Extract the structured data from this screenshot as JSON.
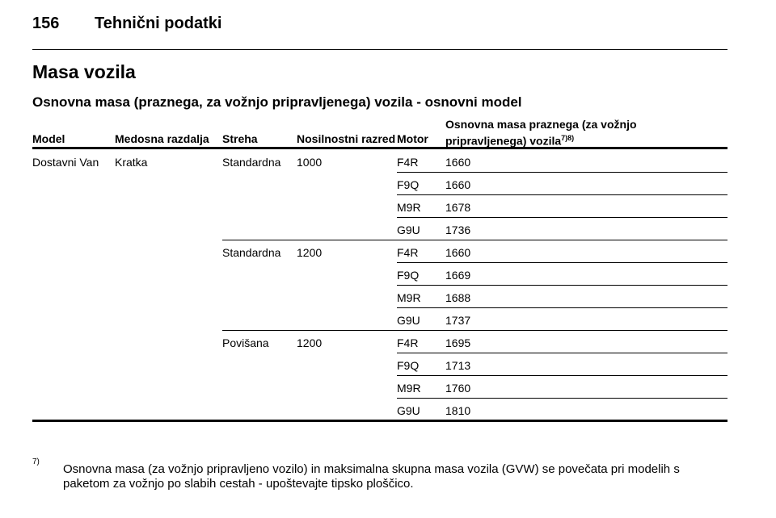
{
  "header": {
    "page_number": "156",
    "section": "Tehnični podatki"
  },
  "title": "Masa vozila",
  "subtitle": "Osnovna masa (praznega, za vožnjo pripravljenega) vozila - osnovni model",
  "table": {
    "headers": [
      "Model",
      "Medosna razdalja",
      "Streha",
      "Nosilnostni razred",
      "Motor",
      "Osnovna masa praznega (za vožnjo pripravljenega) vozila"
    ],
    "header_note_ref": "7)8)",
    "model": "Dostavni Van",
    "wheelbase": "Kratka",
    "groups": [
      {
        "roof": "Standardna",
        "payload": 1000,
        "rows": [
          {
            "engine": "F4R",
            "mass": 1660
          },
          {
            "engine": "F9Q",
            "mass": 1660
          },
          {
            "engine": "M9R",
            "mass": 1678
          },
          {
            "engine": "G9U",
            "mass": 1736
          }
        ]
      },
      {
        "roof": "Standardna",
        "payload": 1200,
        "rows": [
          {
            "engine": "F4R",
            "mass": 1660
          },
          {
            "engine": "F9Q",
            "mass": 1669
          },
          {
            "engine": "M9R",
            "mass": 1688
          },
          {
            "engine": "G9U",
            "mass": 1737
          }
        ]
      },
      {
        "roof": "Povišana",
        "payload": 1200,
        "rows": [
          {
            "engine": "F4R",
            "mass": 1695
          },
          {
            "engine": "F9Q",
            "mass": 1713
          },
          {
            "engine": "M9R",
            "mass": 1760
          },
          {
            "engine": "G9U",
            "mass": 1810
          }
        ]
      }
    ]
  },
  "footnote": {
    "ref": "7)",
    "text": "Osnovna masa (za vožnjo pripravljeno vozilo) in maksimalna skupna masa vozila (GVW) se povečata pri modelih s paketom za vožnjo po slabih cestah - upoštevajte tipsko ploščico."
  }
}
